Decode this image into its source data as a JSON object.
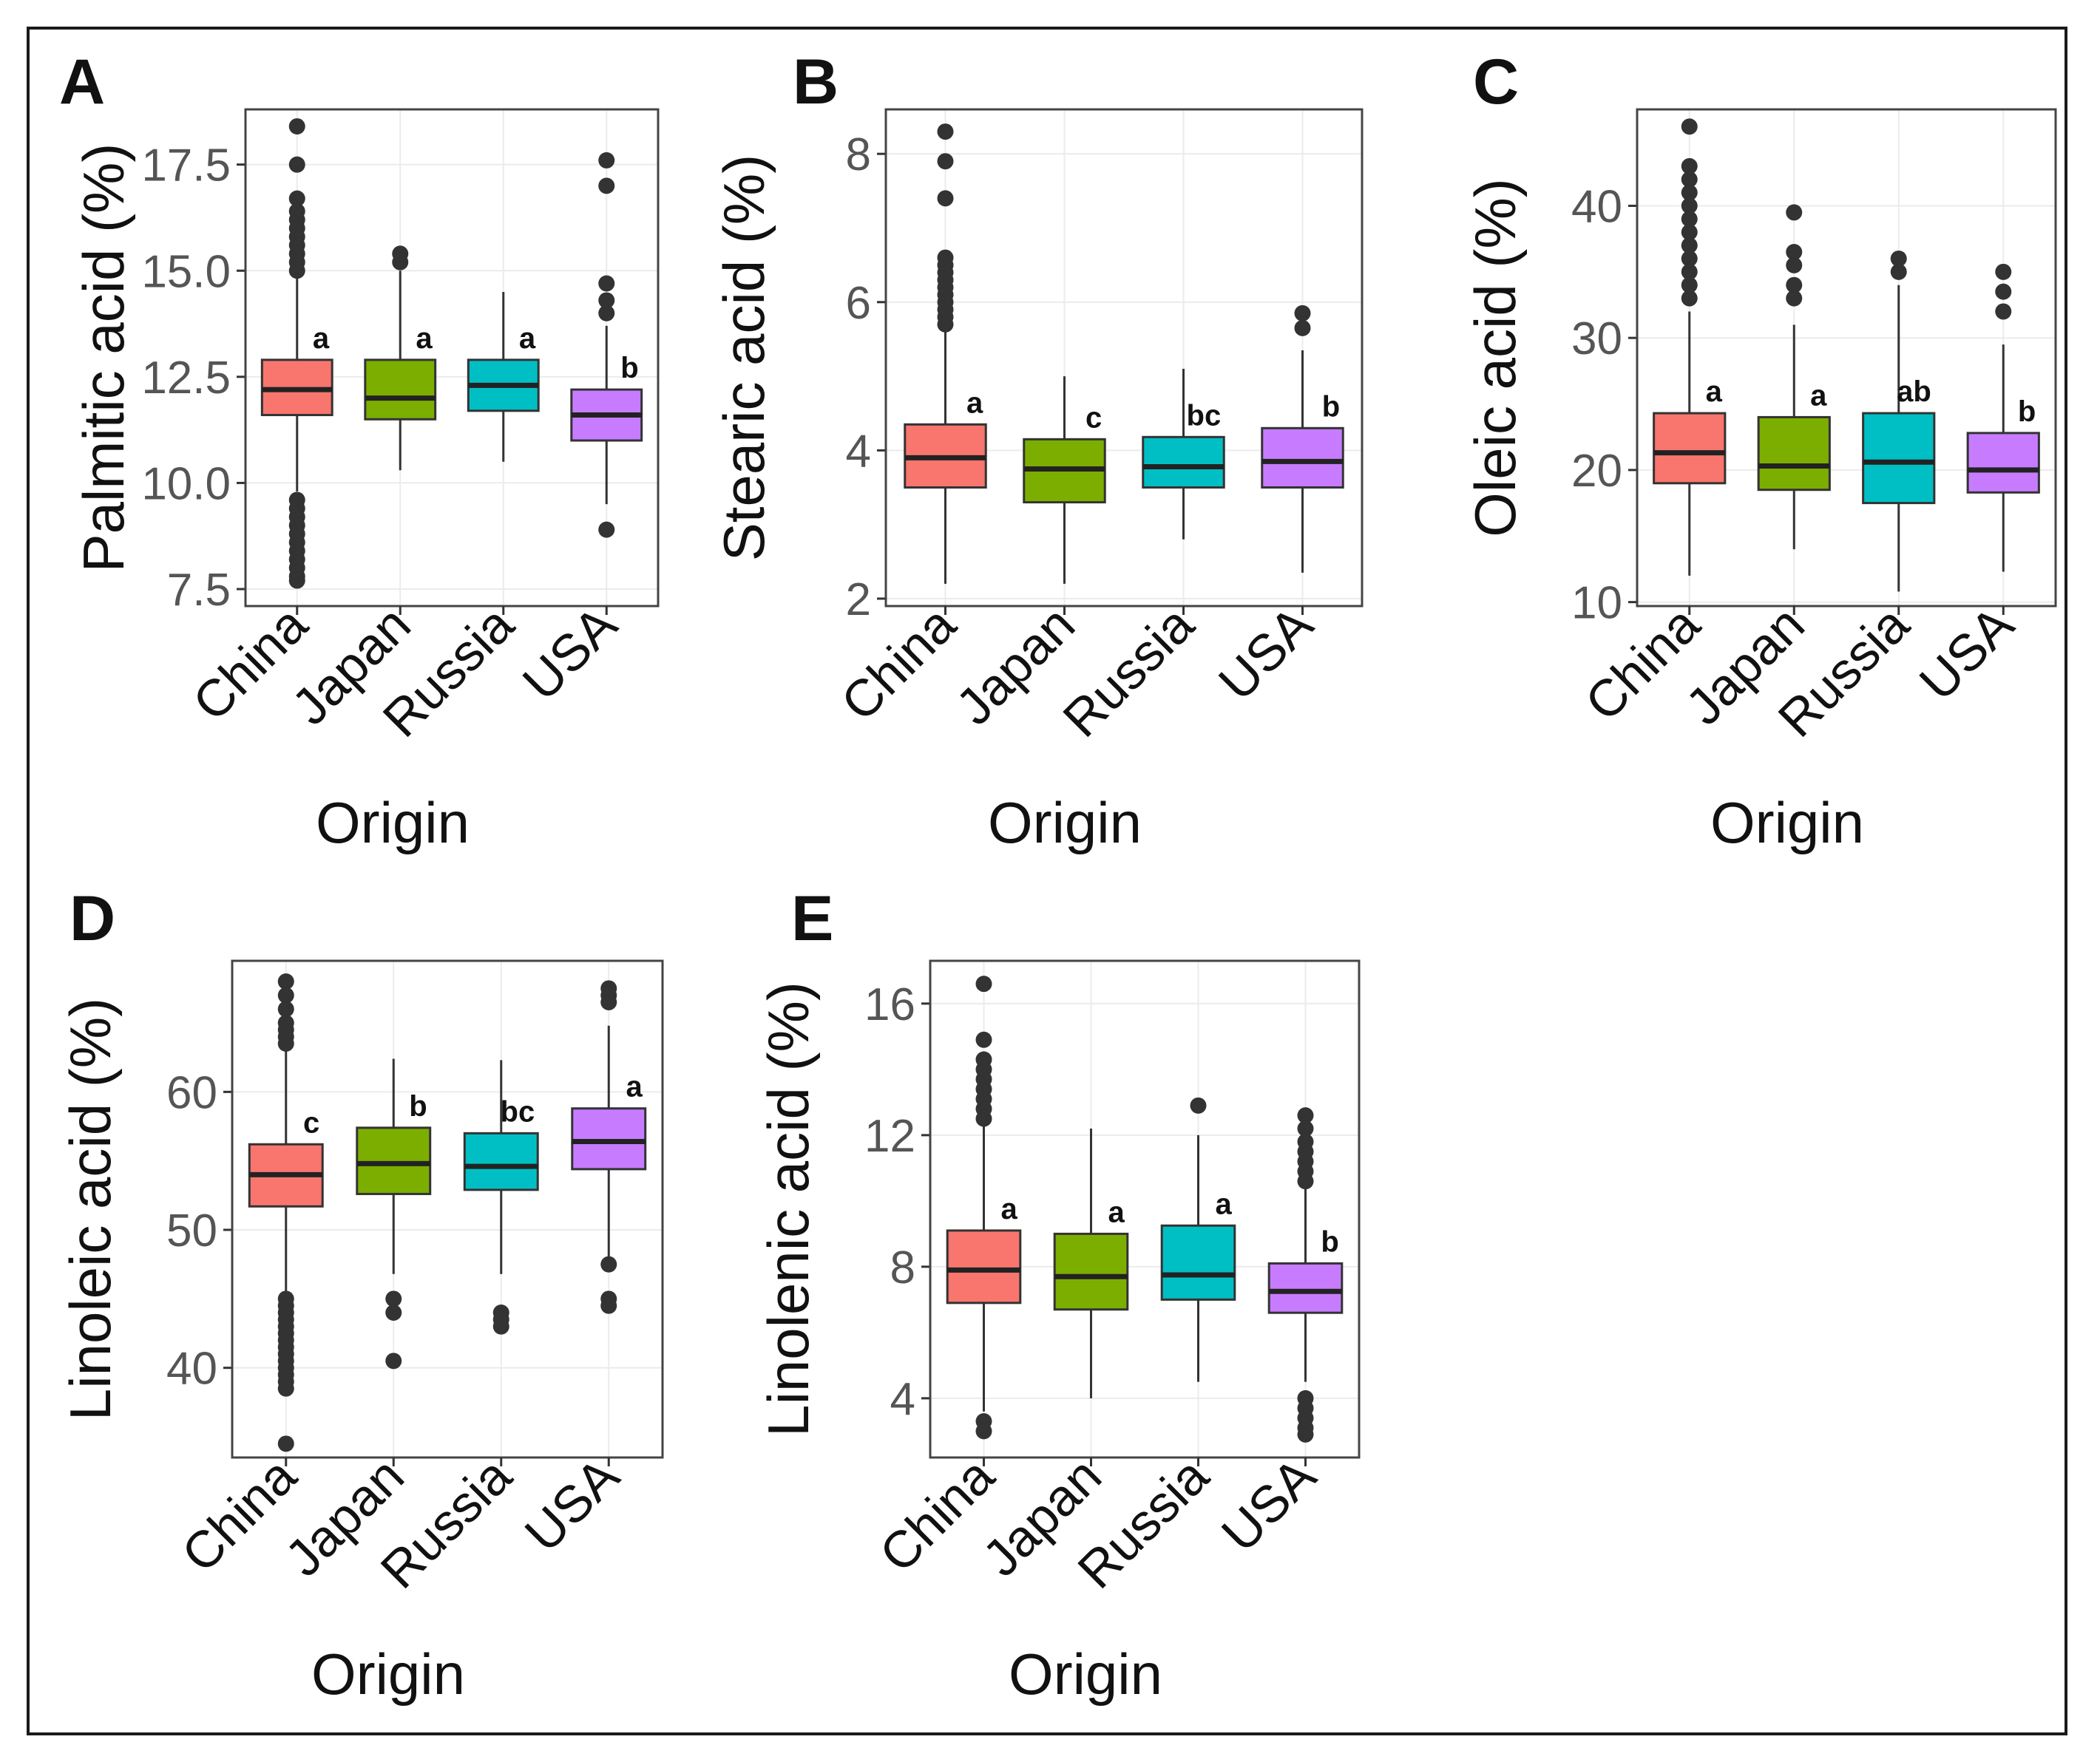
{
  "chart_data": [
    {
      "type": "box",
      "panel": "A",
      "xlabel": "Origin",
      "ylabel": "Palmitic acid (%)",
      "ylim": [
        7.1,
        18.8
      ],
      "yticks": [
        7.5,
        10.0,
        12.5,
        15.0,
        17.5
      ],
      "ytick_labels": [
        "7.5",
        "10.0",
        "12.5",
        "15.0",
        "17.5"
      ],
      "categories": [
        "China",
        "Japan",
        "Russia",
        "USA"
      ],
      "boxes": [
        {
          "q1": 11.6,
          "median": 12.2,
          "q3": 12.9,
          "whisker_low": 9.8,
          "whisker_high": 14.9,
          "outliers": [
            18.4,
            17.5,
            16.7,
            16.4,
            16.2,
            16.0,
            15.8,
            15.6,
            15.4,
            15.2,
            15.0,
            9.6,
            9.4,
            9.2,
            9.0,
            8.8,
            8.6,
            8.4,
            8.2,
            8.0,
            7.8,
            7.7
          ]
        },
        {
          "q1": 11.5,
          "median": 12.0,
          "q3": 12.9,
          "whisker_low": 10.3,
          "whisker_high": 15.0,
          "outliers": [
            15.4,
            15.2
          ]
        },
        {
          "q1": 11.7,
          "median": 12.3,
          "q3": 12.9,
          "whisker_low": 10.5,
          "whisker_high": 14.5,
          "outliers": []
        },
        {
          "q1": 11.0,
          "median": 11.6,
          "q3": 12.2,
          "whisker_low": 9.5,
          "whisker_high": 13.7,
          "outliers": [
            17.6,
            17.0,
            14.7,
            14.3,
            14.0,
            8.9
          ]
        }
      ],
      "significance": [
        "a",
        "a",
        "a",
        "b"
      ],
      "colors": [
        "#f8766d",
        "#7cae00",
        "#00bfc4",
        "#c77cff"
      ]
    },
    {
      "type": "box",
      "panel": "B",
      "xlabel": "Origin",
      "ylabel": "Stearic acid (%)",
      "ylim": [
        1.9,
        8.6
      ],
      "yticks": [
        2,
        4,
        6,
        8
      ],
      "ytick_labels": [
        "2",
        "4",
        "6",
        "8"
      ],
      "categories": [
        "China",
        "Japan",
        "Russia",
        "USA"
      ],
      "boxes": [
        {
          "q1": 3.5,
          "median": 3.9,
          "q3": 4.35,
          "whisker_low": 2.2,
          "whisker_high": 5.6,
          "outliers": [
            8.3,
            7.9,
            7.4,
            6.6,
            6.5,
            6.4,
            6.3,
            6.2,
            6.1,
            6.0,
            5.9,
            5.8,
            5.7
          ]
        },
        {
          "q1": 3.3,
          "median": 3.75,
          "q3": 4.15,
          "whisker_low": 2.2,
          "whisker_high": 5.0,
          "outliers": []
        },
        {
          "q1": 3.5,
          "median": 3.78,
          "q3": 4.18,
          "whisker_low": 2.8,
          "whisker_high": 5.1,
          "outliers": []
        },
        {
          "q1": 3.5,
          "median": 3.85,
          "q3": 4.3,
          "whisker_low": 2.35,
          "whisker_high": 5.35,
          "outliers": [
            5.85,
            5.65
          ]
        }
      ],
      "significance": [
        "a",
        "c",
        "bc",
        "b"
      ],
      "colors": [
        "#f8766d",
        "#7cae00",
        "#00bfc4",
        "#c77cff"
      ]
    },
    {
      "type": "box",
      "panel": "C",
      "xlabel": "Origin",
      "ylabel": "Oleic acid (%)",
      "ylim": [
        9.7,
        47.3
      ],
      "yticks": [
        10,
        20,
        30,
        40
      ],
      "ytick_labels": [
        "10",
        "20",
        "30",
        "40"
      ],
      "categories": [
        "China",
        "Japan",
        "Russia",
        "USA"
      ],
      "boxes": [
        {
          "q1": 19.0,
          "median": 21.3,
          "q3": 24.3,
          "whisker_low": 12.0,
          "whisker_high": 32.0,
          "outliers": [
            46.0,
            43.0,
            42.0,
            41.0,
            40.0,
            39.0,
            38.0,
            37.0,
            36.0,
            35.0,
            34.0,
            33.0
          ]
        },
        {
          "q1": 18.5,
          "median": 20.3,
          "q3": 24.0,
          "whisker_low": 14.0,
          "whisker_high": 31.0,
          "outliers": [
            39.5,
            36.5,
            35.5,
            34.0,
            33.0
          ]
        },
        {
          "q1": 17.5,
          "median": 20.6,
          "q3": 24.3,
          "whisker_low": 10.8,
          "whisker_high": 34.0,
          "outliers": [
            36.0,
            35.0
          ]
        },
        {
          "q1": 18.3,
          "median": 20.0,
          "q3": 22.8,
          "whisker_low": 12.3,
          "whisker_high": 29.5,
          "outliers": [
            35.0,
            33.5,
            32.0
          ]
        }
      ],
      "significance": [
        "a",
        "a",
        "ab",
        "b"
      ],
      "colors": [
        "#f8766d",
        "#7cae00",
        "#00bfc4",
        "#c77cff"
      ]
    },
    {
      "type": "box",
      "panel": "D",
      "xlabel": "Origin",
      "ylabel": "Linoleic acid (%)",
      "ylim": [
        33.5,
        69.5
      ],
      "yticks": [
        40,
        50,
        60
      ],
      "ytick_labels": [
        "40",
        "50",
        "60"
      ],
      "categories": [
        "China",
        "Japan",
        "Russia",
        "USA"
      ],
      "boxes": [
        {
          "q1": 51.7,
          "median": 54.0,
          "q3": 56.2,
          "whisker_low": 45.5,
          "whisker_high": 63.0,
          "outliers": [
            68.0,
            67.0,
            66.0,
            65.0,
            64.5,
            64.0,
            63.5,
            45.0,
            44.5,
            44.0,
            43.5,
            43.0,
            42.5,
            42.0,
            41.5,
            41.0,
            40.5,
            40.0,
            39.5,
            39.0,
            38.5,
            34.5
          ]
        },
        {
          "q1": 52.6,
          "median": 54.8,
          "q3": 57.4,
          "whisker_low": 46.8,
          "whisker_high": 62.4,
          "outliers": [
            45.0,
            44.0,
            40.5
          ]
        },
        {
          "q1": 52.9,
          "median": 54.6,
          "q3": 57.0,
          "whisker_low": 46.8,
          "whisker_high": 62.3,
          "outliers": [
            44.0,
            43.5,
            43.0
          ]
        },
        {
          "q1": 54.4,
          "median": 56.4,
          "q3": 58.8,
          "whisker_low": 48.0,
          "whisker_high": 64.8,
          "outliers": [
            67.5,
            67.0,
            66.5,
            47.5,
            45.0,
            44.5
          ]
        }
      ],
      "significance": [
        "c",
        "b",
        "bc",
        "a"
      ],
      "colors": [
        "#f8766d",
        "#7cae00",
        "#00bfc4",
        "#c77cff"
      ]
    },
    {
      "type": "box",
      "panel": "E",
      "xlabel": "Origin",
      "ylabel": "Linolenic acid (%)",
      "ylim": [
        2.2,
        17.3
      ],
      "yticks": [
        4,
        8,
        12,
        16
      ],
      "ytick_labels": [
        "4",
        "8",
        "12",
        "16"
      ],
      "categories": [
        "China",
        "Japan",
        "Russia",
        "USA"
      ],
      "boxes": [
        {
          "q1": 6.9,
          "median": 7.9,
          "q3": 9.1,
          "whisker_low": 3.6,
          "whisker_high": 12.3,
          "outliers": [
            16.6,
            14.9,
            14.3,
            14.0,
            13.7,
            13.4,
            13.1,
            12.8,
            12.5,
            3.3,
            3.0
          ]
        },
        {
          "q1": 6.7,
          "median": 7.7,
          "q3": 9.0,
          "whisker_low": 4.0,
          "whisker_high": 12.2,
          "outliers": []
        },
        {
          "q1": 7.0,
          "median": 7.75,
          "q3": 9.25,
          "whisker_low": 4.5,
          "whisker_high": 12.0,
          "outliers": [
            12.9
          ]
        },
        {
          "q1": 6.6,
          "median": 7.25,
          "q3": 8.1,
          "whisker_low": 4.5,
          "whisker_high": 10.4,
          "outliers": [
            12.6,
            12.2,
            11.8,
            11.5,
            11.2,
            10.9,
            10.6,
            4.0,
            3.7,
            3.4,
            3.1,
            2.9
          ]
        }
      ],
      "significance": [
        "a",
        "a",
        "a",
        "b"
      ],
      "colors": [
        "#f8766d",
        "#7cae00",
        "#00bfc4",
        "#c77cff"
      ]
    }
  ]
}
